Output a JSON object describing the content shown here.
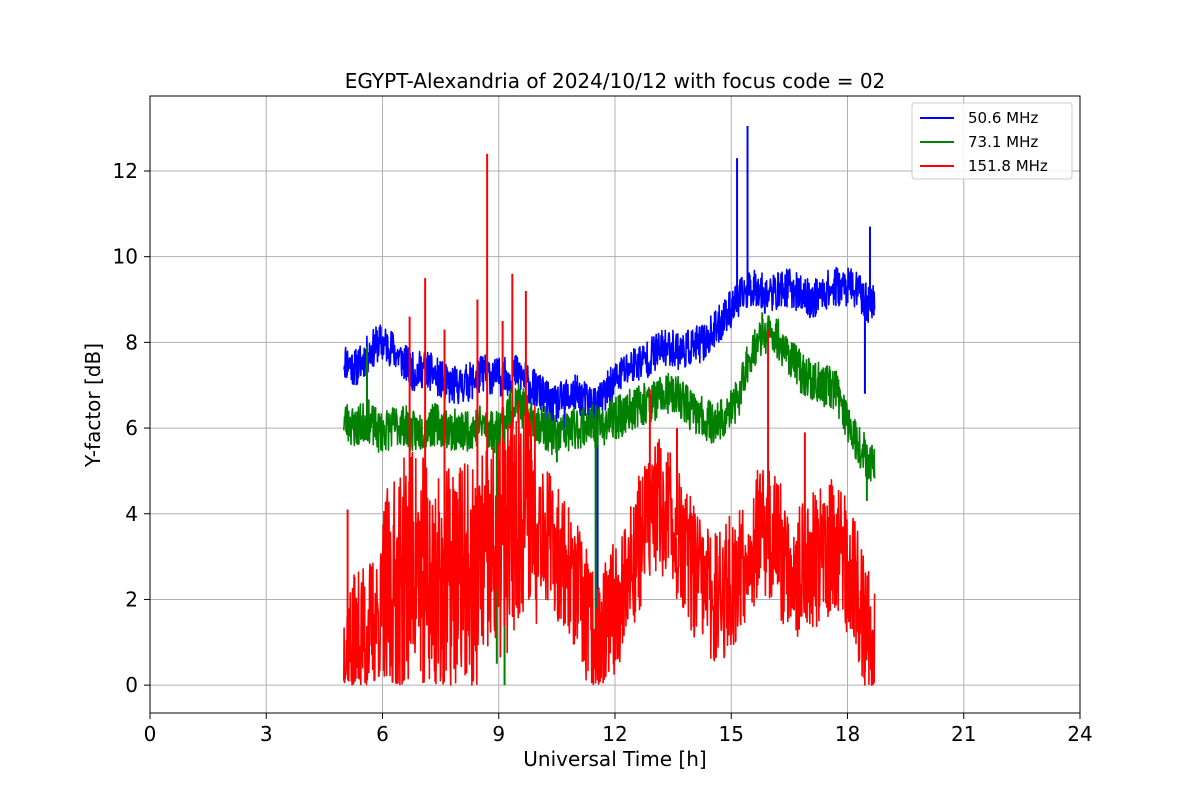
{
  "chart_data": {
    "type": "line",
    "title": "EGYPT-Alexandria of 2024/10/12 with focus code = 02",
    "xlabel": "Universal Time [h]",
    "ylabel": "Y-factor [dB]",
    "xlim": [
      0,
      24
    ],
    "ylim": [
      -0.65,
      13.75
    ],
    "xticks": [
      0,
      3,
      6,
      9,
      12,
      15,
      18,
      21,
      24
    ],
    "yticks": [
      0,
      2,
      4,
      6,
      8,
      10,
      12
    ],
    "grid": true,
    "legend_position": "top-right",
    "series": [
      {
        "name": "  50.6 MHz",
        "color": "#0000ff",
        "x": [
          5.0,
          5.3,
          5.6,
          5.9,
          6.2,
          6.5,
          6.8,
          7.1,
          7.4,
          7.7,
          8.0,
          8.3,
          8.6,
          8.9,
          9.2,
          9.5,
          9.8,
          10.1,
          10.4,
          10.7,
          11.0,
          11.3,
          11.6,
          11.9,
          12.2,
          12.5,
          12.8,
          13.1,
          13.4,
          13.7,
          14.0,
          14.3,
          14.6,
          14.9,
          15.2,
          15.4,
          15.6,
          15.9,
          16.2,
          16.5,
          16.8,
          17.1,
          17.4,
          17.7,
          18.0,
          18.3,
          18.5,
          18.7
        ],
        "y": [
          7.6,
          7.4,
          7.7,
          8.0,
          7.9,
          7.6,
          7.3,
          7.4,
          7.2,
          7.0,
          7.0,
          7.1,
          7.3,
          7.2,
          7.2,
          7.3,
          7.0,
          6.8,
          6.5,
          6.7,
          6.8,
          6.6,
          6.6,
          7.0,
          7.3,
          7.5,
          7.6,
          7.8,
          7.9,
          7.8,
          7.9,
          8.0,
          8.3,
          8.7,
          9.0,
          9.2,
          9.3,
          9.1,
          9.2,
          9.3,
          9.1,
          9.0,
          9.2,
          9.3,
          9.3,
          9.2,
          8.9,
          9.0
        ]
      },
      {
        "name": "  73.1 MHz",
        "color": "#008000",
        "x": [
          5.0,
          5.3,
          5.6,
          5.9,
          6.2,
          6.5,
          6.8,
          7.1,
          7.4,
          7.7,
          8.0,
          8.3,
          8.6,
          8.9,
          9.2,
          9.5,
          9.8,
          10.1,
          10.4,
          10.7,
          11.0,
          11.3,
          11.6,
          11.9,
          12.2,
          12.5,
          12.8,
          13.1,
          13.4,
          13.7,
          14.0,
          14.3,
          14.6,
          14.9,
          15.2,
          15.4,
          15.6,
          15.9,
          16.2,
          16.5,
          16.8,
          17.1,
          17.4,
          17.7,
          18.0,
          18.3,
          18.5,
          18.7
        ],
        "y": [
          6.2,
          6.0,
          6.2,
          5.9,
          6.0,
          6.1,
          5.9,
          6.0,
          6.1,
          6.0,
          5.9,
          6.0,
          6.1,
          5.9,
          6.3,
          6.6,
          6.2,
          6.1,
          5.8,
          5.9,
          6.0,
          6.1,
          6.0,
          6.2,
          6.3,
          6.5,
          6.6,
          6.7,
          6.8,
          6.7,
          6.4,
          6.2,
          6.1,
          6.3,
          6.7,
          7.5,
          7.9,
          8.2,
          8.1,
          7.7,
          7.3,
          7.1,
          7.0,
          6.9,
          6.2,
          5.6,
          5.3,
          5.2
        ]
      },
      {
        "name": "  151.8 MHz",
        "color": "#ff0000",
        "x": [
          5.0,
          5.3,
          5.6,
          5.9,
          6.2,
          6.5,
          6.8,
          7.1,
          7.4,
          7.7,
          8.0,
          8.3,
          8.6,
          8.9,
          9.2,
          9.5,
          9.8,
          10.1,
          10.4,
          10.7,
          11.0,
          11.3,
          11.6,
          11.9,
          12.2,
          12.5,
          12.8,
          13.1,
          13.4,
          13.7,
          14.0,
          14.3,
          14.6,
          14.9,
          15.2,
          15.4,
          15.6,
          15.9,
          16.2,
          16.5,
          16.8,
          17.1,
          17.4,
          17.7,
          18.0,
          18.3,
          18.5,
          18.7
        ],
        "y": [
          0.9,
          1.0,
          1.3,
          1.6,
          2.0,
          2.5,
          3.0,
          2.6,
          2.2,
          2.4,
          2.6,
          2.4,
          2.8,
          3.0,
          3.4,
          4.2,
          4.5,
          3.8,
          3.2,
          2.9,
          2.2,
          1.5,
          1.0,
          1.6,
          2.3,
          3.0,
          3.8,
          4.2,
          3.9,
          3.3,
          2.7,
          2.2,
          2.0,
          2.3,
          2.6,
          3.2,
          3.4,
          3.6,
          3.2,
          2.8,
          2.7,
          2.9,
          3.1,
          3.3,
          2.8,
          2.0,
          1.4,
          1.1
        ]
      }
    ],
    "spikes": {
      "  50.6 MHz": [
        [
          15.15,
          12.3
        ],
        [
          15.42,
          13.05
        ],
        [
          18.58,
          10.7
        ],
        [
          18.45,
          6.8
        ],
        [
          11.55,
          0.4
        ],
        [
          10.7,
          6.0
        ]
      ],
      "  73.1 MHz": [
        [
          5.6,
          7.9
        ],
        [
          9.15,
          0.0
        ],
        [
          8.95,
          0.5
        ],
        [
          11.5,
          0.5
        ],
        [
          15.8,
          8.7
        ],
        [
          18.5,
          4.3
        ],
        [
          10.5,
          5.2
        ]
      ],
      "  151.8 MHz": [
        [
          8.7,
          12.4
        ],
        [
          7.1,
          9.5
        ],
        [
          9.35,
          9.6
        ],
        [
          8.45,
          9.0
        ],
        [
          9.7,
          9.2
        ],
        [
          7.6,
          8.3
        ],
        [
          6.7,
          8.6
        ],
        [
          9.1,
          8.5
        ],
        [
          15.95,
          8.3
        ],
        [
          7.05,
          0.05
        ],
        [
          5.1,
          4.1
        ],
        [
          12.9,
          6.9
        ],
        [
          16.9,
          5.9
        ],
        [
          18.45,
          0.3
        ],
        [
          13.6,
          6.0
        ]
      ]
    }
  }
}
